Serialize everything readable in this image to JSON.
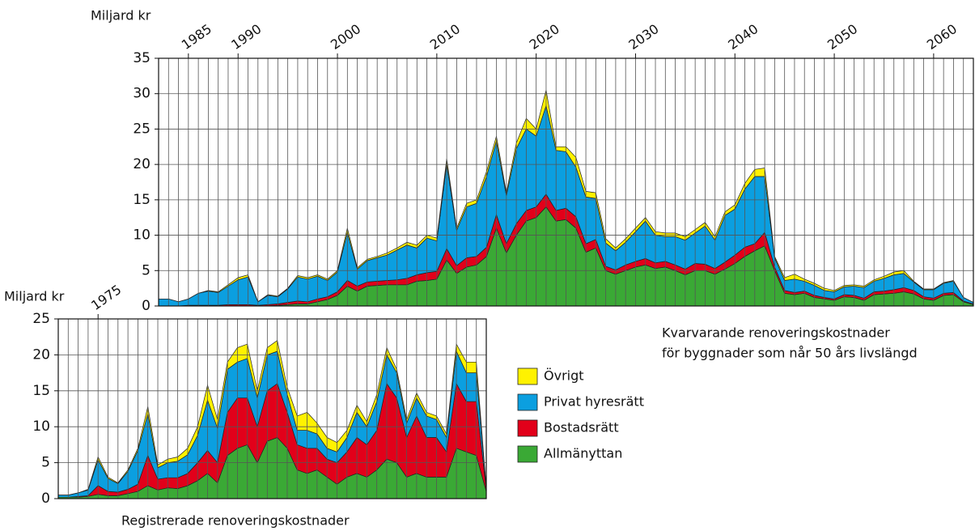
{
  "chart_data": [
    {
      "type": "stacked_area",
      "y_label": "Miljard kr",
      "annotations": [
        "Kvarvarande renoveringskostnader",
        "för byggnader som når 50 års livslängd"
      ],
      "x": [
        1982,
        1983,
        1984,
        1985,
        1986,
        1987,
        1988,
        1989,
        1990,
        1991,
        1992,
        1993,
        1994,
        1995,
        1996,
        1997,
        1998,
        1999,
        2000,
        2001,
        2002,
        2003,
        2004,
        2005,
        2006,
        2007,
        2008,
        2009,
        2010,
        2011,
        2012,
        2013,
        2014,
        2015,
        2016,
        2017,
        2018,
        2019,
        2020,
        2021,
        2022,
        2023,
        2024,
        2025,
        2026,
        2027,
        2028,
        2029,
        2030,
        2031,
        2032,
        2033,
        2034,
        2035,
        2036,
        2037,
        2038,
        2039,
        2040,
        2041,
        2042,
        2043,
        2044,
        2045,
        2046,
        2047,
        2048,
        2049,
        2050,
        2051,
        2052,
        2053,
        2054,
        2055,
        2056,
        2057,
        2058,
        2059,
        2060,
        2061,
        2062,
        2063,
        2064
      ],
      "xlim": [
        1982,
        2064
      ],
      "xticks": [
        1985,
        1990,
        2000,
        2010,
        2020,
        2030,
        2040,
        2050,
        2060
      ],
      "ylim": [
        0,
        35
      ],
      "yticks": [
        0,
        5,
        10,
        15,
        20,
        25,
        30,
        35
      ],
      "grid": true,
      "series": [
        {
          "name": "Allmänyttan",
          "color": "#3aa935",
          "values": [
            0,
            0,
            0,
            0,
            0,
            0,
            0,
            0,
            0,
            0,
            0,
            0,
            0.1,
            0.2,
            0.3,
            0.3,
            0.6,
            0.9,
            1.5,
            2.8,
            2.1,
            2.8,
            2.9,
            3.0,
            3.0,
            3.0,
            3.5,
            3.6,
            3.8,
            6.5,
            4.6,
            5.5,
            5.8,
            7.0,
            11.0,
            7.5,
            10.0,
            12.0,
            12.5,
            14.0,
            12.0,
            12.2,
            11.0,
            7.6,
            8.2,
            5.0,
            4.5,
            5.0,
            5.5,
            5.8,
            5.3,
            5.5,
            5.0,
            4.4,
            5.0,
            5.0,
            4.5,
            5.2,
            6.0,
            7.0,
            7.8,
            8.5,
            5.0,
            1.8,
            1.6,
            1.8,
            1.2,
            1.0,
            0.8,
            1.3,
            1.2,
            0.8,
            1.6,
            1.7,
            1.8,
            2.0,
            1.7,
            1.0,
            0.8,
            1.5,
            1.6,
            0.6,
            0.2
          ]
        },
        {
          "name": "Bostadsrätt",
          "color": "#e2001a",
          "values": [
            0,
            0,
            0,
            0.1,
            0.1,
            0.1,
            0.1,
            0.2,
            0.2,
            0.2,
            0.1,
            0.2,
            0.2,
            0.3,
            0.4,
            0.3,
            0.4,
            0.4,
            0.5,
            0.8,
            0.7,
            0.6,
            0.6,
            0.6,
            0.7,
            0.9,
            0.9,
            1.1,
            1.1,
            1.6,
            1.1,
            1.3,
            1.2,
            1.3,
            1.9,
            1.3,
            1.6,
            1.5,
            1.5,
            1.8,
            1.5,
            1.6,
            1.6,
            1.2,
            1.2,
            0.6,
            0.6,
            0.8,
            0.8,
            0.9,
            0.8,
            0.8,
            0.8,
            0.8,
            1.0,
            0.9,
            0.8,
            1.0,
            1.2,
            1.3,
            1.0,
            1.9,
            0.5,
            0.4,
            0.3,
            0.3,
            0.3,
            0.2,
            0.2,
            0.3,
            0.3,
            0.3,
            0.4,
            0.4,
            0.5,
            0.6,
            0.5,
            0.3,
            0.3,
            0.3,
            0.3,
            0.1,
            0.1
          ]
        },
        {
          "name": "Privat hyresrätt",
          "color": "#0b9fe0",
          "values": [
            1.0,
            1.0,
            0.6,
            0.9,
            1.7,
            2.0,
            1.8,
            2.6,
            3.5,
            3.9,
            0.5,
            1.3,
            1.0,
            1.9,
            3.4,
            3.2,
            3.2,
            2.3,
            2.8,
            6.8,
            2.4,
            3.0,
            3.3,
            3.6,
            4.2,
            4.7,
            3.8,
            4.9,
            4.3,
            12.0,
            5.0,
            7.2,
            7.5,
            10.0,
            10.4,
            6.8,
            10.6,
            11.5,
            10.0,
            12.5,
            8.5,
            8.0,
            7.0,
            6.6,
            5.8,
            3.3,
            2.7,
            3.2,
            4.2,
            5.3,
            3.9,
            3.5,
            4.0,
            4.1,
            4.3,
            5.4,
            4.0,
            6.6,
            6.5,
            8.2,
            9.5,
            7.9,
            1.3,
            1.4,
            1.9,
            1.4,
            1.4,
            1.0,
            1.0,
            1.1,
            1.3,
            1.5,
            1.5,
            1.8,
            2.1,
            2.0,
            1.2,
            1.0,
            1.2,
            1.4,
            1.6,
            0.5,
            0.2
          ]
        },
        {
          "name": "Övrigt",
          "color": "#fff200",
          "values": [
            0,
            0,
            0,
            0,
            0,
            0.1,
            0.1,
            0.2,
            0.3,
            0.3,
            0,
            0.1,
            0.1,
            0.1,
            0.2,
            0.2,
            0.2,
            0.2,
            0.2,
            0.6,
            0.2,
            0.2,
            0.2,
            0.3,
            0.3,
            0.4,
            0.4,
            0.4,
            0.4,
            0.7,
            0.3,
            0.5,
            0.5,
            0.7,
            0.7,
            0.4,
            0.8,
            1.5,
            1.0,
            2.2,
            0.5,
            0.7,
            1.4,
            0.8,
            0.8,
            0.6,
            0.4,
            0.5,
            0.5,
            0.5,
            0.5,
            0.5,
            0.5,
            0.5,
            0.5,
            0.5,
            0.5,
            0.5,
            0.6,
            0.8,
            1.0,
            1.2,
            0.2,
            0.4,
            0.7,
            0.3,
            0.3,
            0.3,
            0.2,
            0.2,
            0.2,
            0.2,
            0.2,
            0.3,
            0.4,
            0.4,
            0.1,
            0.1,
            0.1,
            0.1,
            0.1,
            0,
            0
          ]
        }
      ]
    },
    {
      "type": "stacked_area",
      "y_label": "Miljard kr",
      "annotations": [
        "Registrerade renoveringskostnader"
      ],
      "x": [
        1971,
        1972,
        1973,
        1974,
        1975,
        1976,
        1977,
        1978,
        1979,
        1980,
        1981,
        1982,
        1983,
        1984,
        1985,
        1986,
        1987,
        1988,
        1989,
        1990,
        1991,
        1992,
        1993,
        1994,
        1995,
        1996,
        1997,
        1998,
        1999,
        2000,
        2001,
        2002,
        2003,
        2004,
        2005,
        2006,
        2007,
        2008,
        2009,
        2010,
        2011,
        2012,
        2013,
        2014
      ],
      "xlim": [
        1971,
        2014
      ],
      "xticks": [
        1975
      ],
      "ylim": [
        0,
        25
      ],
      "yticks": [
        0,
        5,
        10,
        15,
        20,
        25
      ],
      "grid": true,
      "series": [
        {
          "color": "#3aa935",
          "values": [
            0.2,
            0.2,
            0.2,
            0.3,
            0.6,
            0.4,
            0.4,
            0.7,
            1.0,
            1.8,
            1.2,
            1.5,
            1.4,
            1.8,
            2.5,
            3.5,
            2.2,
            6.0,
            7.0,
            7.5,
            5.0,
            8.0,
            8.5,
            7.0,
            4.0,
            3.5,
            4.0,
            3.0,
            2.0,
            3.0,
            3.5,
            3.0,
            4.0,
            5.5,
            5.0,
            3.0,
            3.5,
            3.0,
            3.0,
            3.0,
            7.0,
            6.5,
            6.0,
            1.0
          ]
        },
        {
          "color": "#e2001a",
          "values": [
            0,
            0,
            0.1,
            0.1,
            1.2,
            0.6,
            0.5,
            0.6,
            1.0,
            4.2,
            1.5,
            1.4,
            1.5,
            1.7,
            2.5,
            3.2,
            2.8,
            6.0,
            7.0,
            6.5,
            5.0,
            7.0,
            7.5,
            5.0,
            3.5,
            3.5,
            3.0,
            2.5,
            3.0,
            3.5,
            5.0,
            4.5,
            5.5,
            10.5,
            9.0,
            5.5,
            8.0,
            5.5,
            5.5,
            3.5,
            9.0,
            7.0,
            7.5,
            0.3
          ]
        },
        {
          "color": "#0b9fe0",
          "values": [
            0.3,
            0.3,
            0.5,
            0.8,
            3.6,
            1.8,
            1.2,
            2.5,
            4.7,
            5.8,
            1.6,
            2.1,
            2.3,
            2.6,
            3.8,
            7.0,
            4.8,
            6.0,
            5.0,
            5.5,
            4.0,
            5.0,
            4.5,
            2.5,
            2.0,
            2.5,
            2.0,
            1.5,
            1.5,
            2.0,
            3.5,
            2.5,
            4.0,
            4.0,
            3.5,
            2.0,
            2.5,
            3.0,
            2.5,
            2.0,
            4.5,
            4.0,
            4.0,
            0.2
          ]
        },
        {
          "color": "#fff200",
          "values": [
            0,
            0,
            0,
            0.1,
            0.4,
            0.2,
            0.1,
            0.2,
            0.3,
            1.0,
            0.4,
            0.5,
            0.6,
            0.9,
            1.2,
            2.1,
            1.2,
            1.0,
            2.0,
            2.0,
            1.0,
            1.0,
            1.5,
            1.0,
            2.0,
            2.5,
            1.5,
            1.5,
            1.3,
            1.0,
            1.0,
            0.7,
            1.0,
            1.0,
            0.5,
            0.5,
            0.7,
            0.5,
            0.5,
            0.5,
            1.0,
            1.5,
            1.5,
            0
          ]
        }
      ]
    }
  ]
}
